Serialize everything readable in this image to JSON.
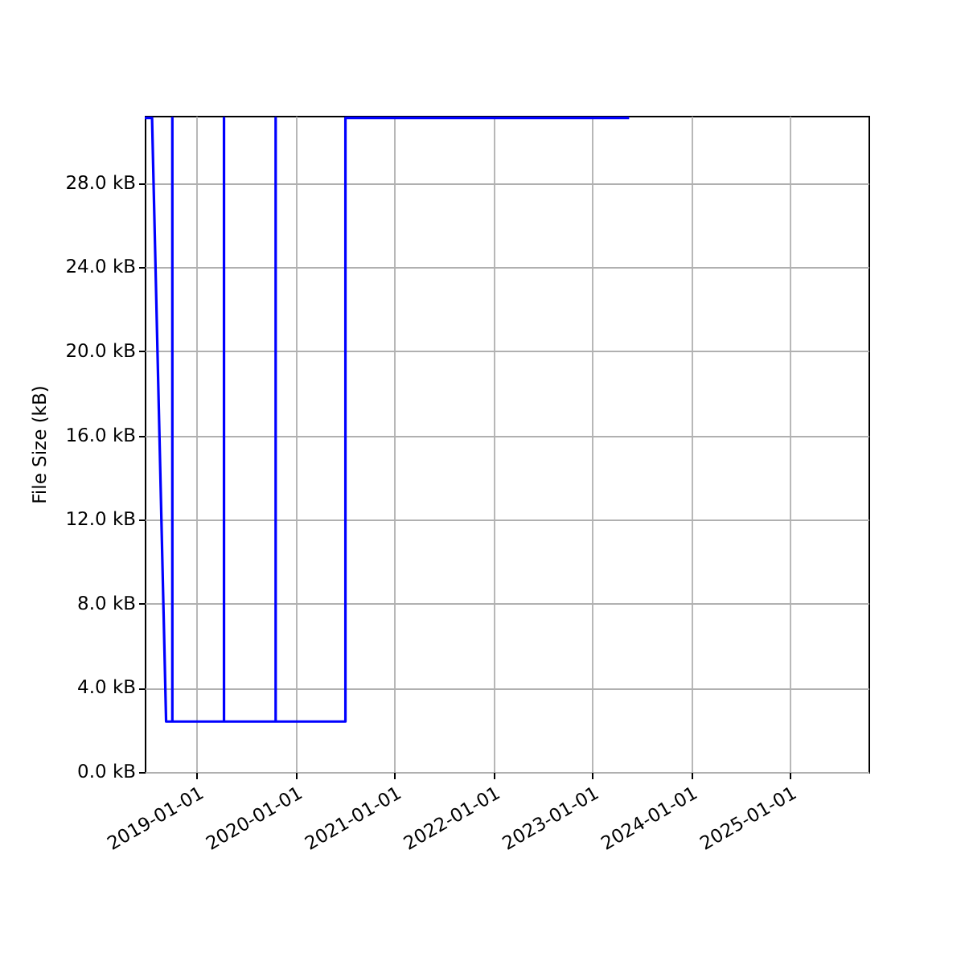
{
  "chart_data": {
    "type": "line",
    "ylabel": "File Size (kB)",
    "x": [
      "2018-06-22",
      "2018-07-19",
      "2018-09-09",
      "2018-10-02",
      "2018-10-02",
      "2018-10-02",
      "2019-04-11",
      "2019-04-11",
      "2019-04-11",
      "2019-10-19",
      "2019-10-19",
      "2019-10-19",
      "2020-07-03",
      "2020-07-03",
      "2023-05-18"
    ],
    "series": [
      {
        "color": "#0000ff",
        "values": [
          31.1,
          31.1,
          2.4,
          2.4,
          31.1,
          2.4,
          2.4,
          31.1,
          2.4,
          2.4,
          31.1,
          2.4,
          2.4,
          31.1,
          31.1
        ]
      }
    ],
    "xlim": [
      "2018-06-22",
      "2025-10-19"
    ],
    "xticks": [
      "2019-01-01",
      "2020-01-01",
      "2021-01-01",
      "2022-01-01",
      "2023-01-01",
      "2024-01-01",
      "2025-01-01"
    ],
    "ylim": [
      0,
      31.2
    ],
    "yticks": [
      {
        "value": 0,
        "label": "0.0 kB"
      },
      {
        "value": 4,
        "label": "4.0 kB"
      },
      {
        "value": 8,
        "label": "8.0 kB"
      },
      {
        "value": 12,
        "label": "12.0 kB"
      },
      {
        "value": 16,
        "label": "16.0 kB"
      },
      {
        "value": 20,
        "label": "20.0 kB"
      },
      {
        "value": 24,
        "label": "24.0 kB"
      },
      {
        "value": 28,
        "label": "28.0 kB"
      }
    ],
    "grid": true,
    "line_style": "solid"
  }
}
